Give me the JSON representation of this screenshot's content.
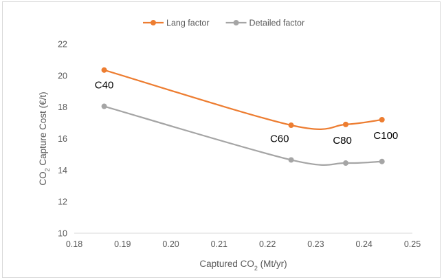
{
  "chart_data": {
    "type": "line",
    "title": "",
    "xlabel": {
      "pre": "Captured CO",
      "sub": "2",
      "post": " (Mt/yr)"
    },
    "ylabel": {
      "pre": "CO",
      "sub": "2",
      "post": " Capture Cost (€/t)"
    },
    "xlim": [
      0.18,
      0.25
    ],
    "ylim": [
      10,
      22
    ],
    "xticks": [
      0.18,
      0.19,
      0.2,
      0.21,
      0.22,
      0.23,
      0.24,
      0.25
    ],
    "xtick_labels": [
      "0.18",
      "0.19",
      "0.20",
      "0.21",
      "0.22",
      "0.23",
      "0.24",
      "0.25"
    ],
    "yticks": [
      10,
      12,
      14,
      16,
      18,
      20,
      22
    ],
    "ytick_labels": [
      "10",
      "12",
      "14",
      "16",
      "18",
      "20",
      "22"
    ],
    "grid": false,
    "legend_position": "top",
    "series": [
      {
        "name": "Lang factor",
        "color": "#ed7d31",
        "x": [
          0.1862,
          0.2249,
          0.2362,
          0.2437
        ],
        "y": [
          20.35,
          16.85,
          16.9,
          17.2
        ]
      },
      {
        "name": "Detailed factor",
        "color": "#a5a5a5",
        "x": [
          0.1862,
          0.2249,
          0.2362,
          0.2437
        ],
        "y": [
          18.05,
          14.65,
          14.45,
          14.55
        ]
      }
    ],
    "annotations": [
      {
        "text": "C40",
        "x": 0.1862,
        "y": 19.4
      },
      {
        "text": "C60",
        "x": 0.2225,
        "y": 16.0
      },
      {
        "text": "C80",
        "x": 0.2355,
        "y": 15.9
      },
      {
        "text": "C100",
        "x": 0.2445,
        "y": 16.2
      }
    ]
  }
}
